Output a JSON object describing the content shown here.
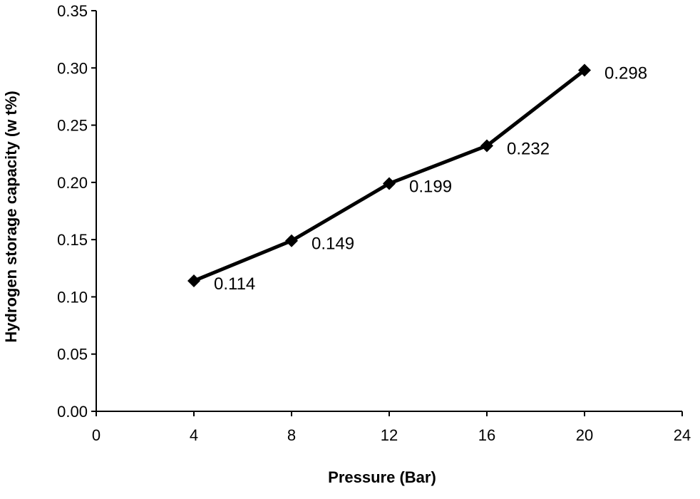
{
  "chart_data": {
    "type": "line",
    "title": "",
    "xlabel": "Pressure (Bar)",
    "ylabel": "Hydrogen storage capacity (w t%)",
    "xlim": [
      0,
      24
    ],
    "ylim": [
      0,
      0.35
    ],
    "xticks": [
      "0",
      "4",
      "8",
      "12",
      "16",
      "20",
      "24"
    ],
    "yticks": [
      "0.00",
      "0.05",
      "0.10",
      "0.15",
      "0.20",
      "0.25",
      "0.30",
      "0.35"
    ],
    "grid": false,
    "legend": "none",
    "series": [
      {
        "x": [
          4,
          8,
          12,
          16,
          20
        ],
        "y": [
          0.114,
          0.149,
          0.199,
          0.232,
          0.298
        ],
        "labels": [
          "0.114",
          "0.149",
          "0.199",
          "0.232",
          "0.298"
        ],
        "marker": "diamond",
        "color": "#000000"
      }
    ]
  }
}
